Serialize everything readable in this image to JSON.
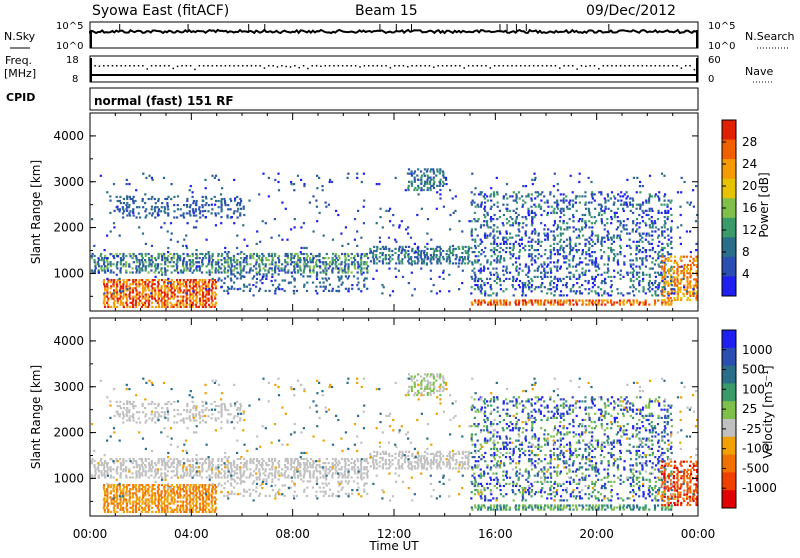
{
  "header": {
    "title": "Syowa East (fitACF)",
    "beam": "Beam 15",
    "date": "09/Dec/2012"
  },
  "status_panels": {
    "nsky_label": "N.Sky",
    "nsearch_label": "N.Search",
    "noise_ticks": [
      "10^5",
      "10^0"
    ],
    "freq_label": "Freq.",
    "freq_unit": "[MHz]",
    "freq_ticks": [
      "18",
      "8"
    ],
    "nave_ticks": [
      "60",
      "0"
    ],
    "nave_label": "Nave",
    "cpid_label": "CPID",
    "cpid_value": "normal (fast) 151 RF"
  },
  "colors": {
    "power": [
      "#1f1ff2",
      "#2a4fb0",
      "#2a6e8a",
      "#3a9a6a",
      "#7fbf4c",
      "#e6c200",
      "#f59a00",
      "#f06000",
      "#e02000"
    ],
    "velocity": [
      "#1f1ff2",
      "#2a4fb0",
      "#2a6e8a",
      "#3a9a6a",
      "#7fbf4c",
      "#c0c0c0",
      "#f0a000",
      "#f07000",
      "#f04000",
      "#e00000"
    ]
  },
  "chart_data": [
    {
      "type": "heatmap",
      "name": "power",
      "ylabel": "Slant Range [km]",
      "xlabel": "",
      "ylim": [
        180,
        4500
      ],
      "xlim": [
        0,
        24
      ],
      "yticks": [
        "1000",
        "2000",
        "3000",
        "4000"
      ],
      "colorbar": {
        "label": "Power [dB]",
        "range": [
          0,
          30
        ],
        "ticks": [
          "4",
          "8",
          "12",
          "16",
          "20",
          "24",
          "28"
        ]
      }
    },
    {
      "type": "heatmap",
      "name": "velocity",
      "ylabel": "Slant Range [km]",
      "xlabel": "Time UT",
      "ylim": [
        180,
        4500
      ],
      "xlim": [
        0,
        24
      ],
      "yticks": [
        "1000",
        "2000",
        "3000",
        "4000"
      ],
      "xticks": [
        "00:00",
        "04:00",
        "08:00",
        "12:00",
        "16:00",
        "20:00",
        "00:00"
      ],
      "colorbar": {
        "label": "Velocity [m s⁻¹]",
        "ticks": [
          "1000",
          "500",
          "100",
          "25",
          "-25",
          "-100",
          "-500",
          "-1000"
        ]
      }
    }
  ]
}
